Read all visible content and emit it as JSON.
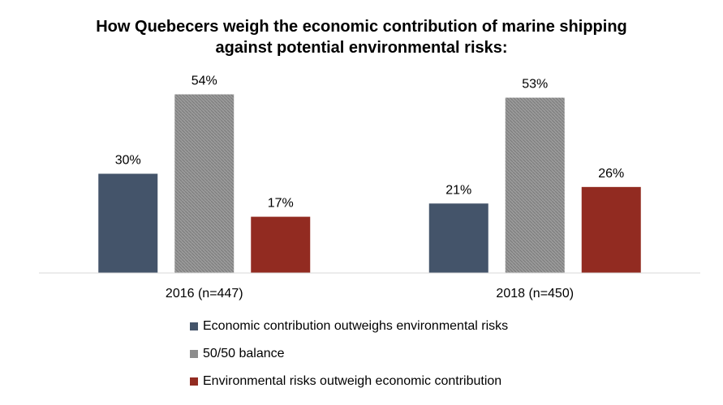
{
  "chart_data": {
    "type": "bar",
    "title": "How Quebecers weigh the economic contribution of marine shipping against potential environmental risks:",
    "title_lines": [
      "How Quebecers weigh the economic contribution of marine shipping",
      "against potential environmental risks:"
    ],
    "categories": [
      "2016 (n=447)",
      "2018 (n=450)"
    ],
    "series": [
      {
        "name": "Economic contribution outweighs environmental risks",
        "color": "#44546a",
        "values": [
          30,
          21
        ],
        "labels": [
          "30%",
          "21%"
        ]
      },
      {
        "name": "50/50 balance",
        "color": "#8c8c8c",
        "values": [
          54,
          53
        ],
        "labels": [
          "54%",
          "53%"
        ]
      },
      {
        "name": "Environmental risks outweigh economic contribution",
        "color": "#922b21",
        "values": [
          17,
          26
        ],
        "labels": [
          "17%",
          "26%"
        ]
      }
    ],
    "xlabel": "",
    "ylabel": "",
    "ylim": [
      0,
      60
    ],
    "grid": false,
    "legend_position": "bottom"
  }
}
